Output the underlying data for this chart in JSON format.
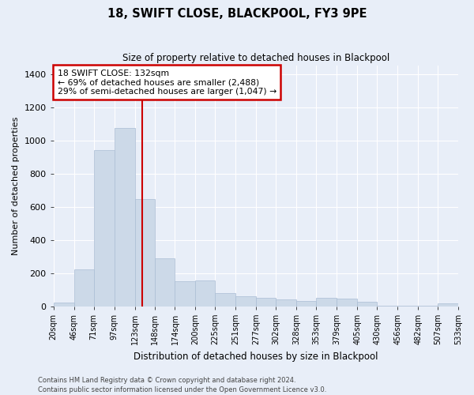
{
  "title": "18, SWIFT CLOSE, BLACKPOOL, FY3 9PE",
  "subtitle": "Size of property relative to detached houses in Blackpool",
  "xlabel": "Distribution of detached houses by size in Blackpool",
  "ylabel": "Number of detached properties",
  "property_size": 132,
  "property_label": "18 SWIFT CLOSE: 132sqm",
  "annotation_line1": "← 69% of detached houses are smaller (2,488)",
  "annotation_line2": "29% of semi-detached houses are larger (1,047) →",
  "footer_line1": "Contains HM Land Registry data © Crown copyright and database right 2024.",
  "footer_line2": "Contains public sector information licensed under the Open Government Licence v3.0.",
  "bar_color": "#ccd9e8",
  "bar_edge_color": "#aabdd4",
  "vline_color": "#cc0000",
  "annotation_box_edge": "#cc0000",
  "background_color": "#e8eef8",
  "plot_bg_color": "#e8eef8",
  "ylim": [
    0,
    1450
  ],
  "yticks": [
    0,
    200,
    400,
    600,
    800,
    1000,
    1200,
    1400
  ],
  "bin_edges": [
    20,
    46,
    71,
    97,
    123,
    148,
    174,
    200,
    225,
    251,
    277,
    302,
    328,
    353,
    379,
    405,
    430,
    456,
    482,
    507,
    533
  ],
  "bin_labels": [
    "20sqm",
    "46sqm",
    "71sqm",
    "97sqm",
    "123sqm",
    "148sqm",
    "174sqm",
    "200sqm",
    "225sqm",
    "251sqm",
    "277sqm",
    "302sqm",
    "328sqm",
    "353sqm",
    "379sqm",
    "405sqm",
    "430sqm",
    "456sqm",
    "482sqm",
    "507sqm",
    "533sqm"
  ],
  "counts": [
    22,
    220,
    940,
    1075,
    645,
    290,
    150,
    155,
    80,
    60,
    50,
    40,
    30,
    50,
    45,
    25,
    5,
    3,
    2,
    18,
    2
  ]
}
